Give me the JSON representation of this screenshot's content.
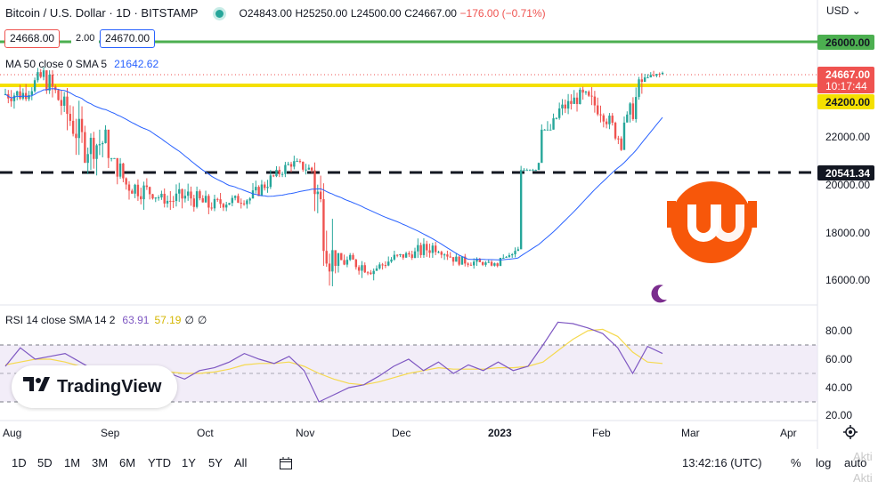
{
  "header": {
    "symbol": "Bitcoin / U.S. Dollar · 1D · BITSTAMP",
    "open": "O24843.00",
    "high": "H25250.00",
    "low": "L24500.00",
    "close": "C24667.00",
    "change": "−176.00 (−0.71%)",
    "currency": "USD"
  },
  "trade": {
    "sell": "24668.00",
    "spread": "2.00",
    "buy": "24670.00"
  },
  "ma_legend": {
    "label": "MA 50 close 0 SMA 5",
    "value": "21642.62"
  },
  "rsi_legend": {
    "label": "RSI 14 close SMA 14 2",
    "rsi": "63.91",
    "sma": "57.19",
    "z1": "∅",
    "z2": "∅"
  },
  "logo_text": "TradingView",
  "price_axis_ticks": [
    "16000.00",
    "18000.00",
    "20000.00",
    "22000.00"
  ],
  "price_tags": {
    "resistance": "26000.00",
    "last": "24667.00",
    "countdown": "10:17:44",
    "support": "24200.00",
    "dashed": "20541.34"
  },
  "rsi_axis_ticks": [
    "20.00",
    "40.00",
    "60.00",
    "80.00"
  ],
  "time_axis": [
    "Aug",
    "Sep",
    "Oct",
    "Nov",
    "Dec",
    "2023",
    "Feb",
    "Mar",
    "Apr"
  ],
  "bottom_bar": {
    "ranges": [
      "1D",
      "5D",
      "1M",
      "3M",
      "6M",
      "YTD",
      "1Y",
      "5Y",
      "All"
    ],
    "clock": "13:42:16 (UTC)",
    "percent": "%",
    "log": "log",
    "auto": "auto",
    "watermark_line1": "Akti",
    "watermark_line2": "Akti"
  },
  "colors": {
    "up": "#26a69a",
    "down": "#ef5350",
    "ma": "#2962ff",
    "rsi": "#7e57c2",
    "rsi_sma": "#f5d94f",
    "resistance": "#4caf50",
    "support": "#f5e000",
    "badge": "#f7570a"
  },
  "chart_data": [
    {
      "type": "candlestick",
      "title": "Bitcoin / U.S. Dollar · 1D · BITSTAMP",
      "y_range": [
        15200,
        26400
      ],
      "x_months": [
        "Aug",
        "Sep",
        "Oct",
        "Nov",
        "Dec",
        "2023",
        "Feb",
        "Mar",
        "Apr"
      ],
      "closes_weekly": [
        23800,
        24600,
        23200,
        21600,
        21800,
        20000,
        19700,
        19300,
        19500,
        19100,
        19300,
        19400,
        20200,
        20900,
        20600,
        16800,
        16700,
        16400,
        16900,
        17100,
        17400,
        16800,
        16700,
        16600,
        17200,
        21000,
        23100,
        23700,
        23200,
        21800,
        24300,
        24667
      ],
      "lows_weekly": [
        22900,
        23500,
        22400,
        20900,
        20000,
        18700,
        18400,
        18900,
        18800,
        18200,
        18600,
        18900,
        19500,
        20300,
        20400,
        15700,
        15600,
        15800,
        16400,
        16800,
        16900,
        16300,
        16400,
        16500,
        16900,
        20600,
        22300,
        22800,
        22400,
        21400,
        22600,
        24500
      ],
      "highs_weekly": [
        24500,
        25100,
        24800,
        24200,
        22800,
        21100,
        20300,
        19900,
        20500,
        19900,
        19800,
        19900,
        20800,
        21300,
        21400,
        21200,
        17100,
        17100,
        17400,
        17600,
        18300,
        17200,
        17200,
        16900,
        17600,
        21300,
        23800,
        24100,
        24200,
        23000,
        25100,
        25250
      ],
      "series": [
        {
          "name": "MA 50 close 0 SMA 5",
          "last": 21642.62
        }
      ],
      "levels": [
        26000,
        24200,
        20541.34
      ],
      "last": 24667.0
    },
    {
      "type": "line",
      "title": "RSI 14 close SMA 14 2",
      "y_range": [
        18,
        93
      ],
      "bands": [
        70,
        50,
        30
      ],
      "series": [
        {
          "name": "RSI",
          "values": [
            55,
            68,
            60,
            62,
            64,
            58,
            52,
            47,
            45,
            50,
            55,
            50,
            46,
            52,
            54,
            58,
            64,
            60,
            57,
            62,
            52,
            30,
            35,
            40,
            42,
            48,
            55,
            60,
            52,
            58,
            50,
            56,
            52,
            58,
            52,
            55,
            70,
            86,
            85,
            82,
            78,
            68,
            50,
            69,
            64
          ]
        },
        {
          "name": "SMA",
          "values": [
            56,
            58,
            60,
            60,
            58,
            55,
            52,
            50,
            49,
            50,
            51,
            51,
            50,
            50,
            51,
            53,
            56,
            57,
            57,
            58,
            55,
            50,
            46,
            43,
            42,
            44,
            47,
            50,
            52,
            54,
            53,
            53,
            53,
            54,
            54,
            55,
            58,
            66,
            74,
            80,
            81,
            76,
            65,
            58,
            57
          ]
        }
      ],
      "last": 63.91
    }
  ]
}
